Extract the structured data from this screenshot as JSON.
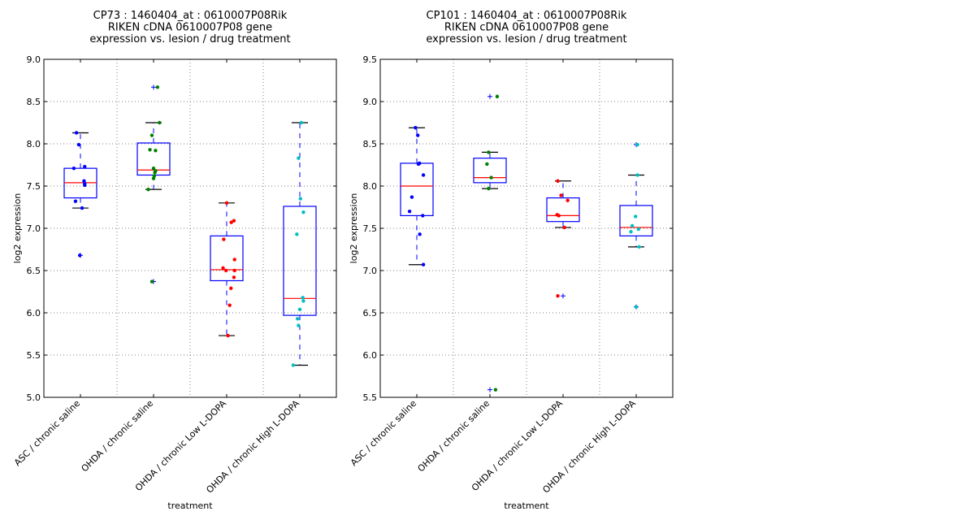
{
  "chart_data": [
    {
      "type": "box",
      "title_lines": [
        "CP73 : 1460404_at : 0610007P08Rik",
        "RIKEN cDNA 0610007P08 gene",
        "expression vs. lesion / drug treatment"
      ],
      "xlabel": "treatment",
      "ylabel": "log2 expression",
      "ylim": [
        5.0,
        9.0
      ],
      "yticks": [
        "5.0",
        "5.5",
        "6.0",
        "6.5",
        "7.0",
        "7.5",
        "8.0",
        "8.5",
        "9.0"
      ],
      "grid": true,
      "categories": [
        "ASC / chronic saline",
        "OHDA / chronic saline",
        "OHDA / chronic Low L-DOPA",
        "OHDA / chronic High L-DOPA"
      ],
      "point_colors": [
        "#0000ff",
        "#008000",
        "#ff0000",
        "#00bfbf"
      ],
      "boxes": [
        {
          "whislo": 7.24,
          "q1": 7.36,
          "med": 7.54,
          "q3": 7.71,
          "whishi": 8.13,
          "fliers": [
            6.68
          ]
        },
        {
          "whislo": 7.46,
          "q1": 7.63,
          "med": 7.69,
          "q3": 8.01,
          "whishi": 8.25,
          "fliers": [
            8.67,
            6.37
          ]
        },
        {
          "whislo": 5.73,
          "q1": 6.38,
          "med": 6.51,
          "q3": 6.91,
          "whishi": 7.3,
          "fliers": []
        },
        {
          "whislo": 5.38,
          "q1": 5.97,
          "med": 6.17,
          "q3": 7.26,
          "whishi": 8.25,
          "fliers": []
        }
      ],
      "points": [
        [
          {
            "v": 8.13,
            "j": -0.12
          },
          {
            "v": 7.99,
            "j": -0.05
          },
          {
            "v": 7.71,
            "j": -0.2
          },
          {
            "v": 7.73,
            "j": 0.13
          },
          {
            "v": 7.56,
            "j": 0.11
          },
          {
            "v": 7.53,
            "j": 0.13
          },
          {
            "v": 7.51,
            "j": 0.13
          },
          {
            "v": 7.32,
            "j": -0.15
          },
          {
            "v": 7.24,
            "j": 0.05
          },
          {
            "v": 6.68,
            "j": -0.02
          }
        ],
        [
          {
            "v": 8.67,
            "j": 0.12
          },
          {
            "v": 8.25,
            "j": 0.18
          },
          {
            "v": 8.1,
            "j": -0.05
          },
          {
            "v": 7.93,
            "j": -0.11
          },
          {
            "v": 7.92,
            "j": 0.06
          },
          {
            "v": 7.71,
            "j": 0.0
          },
          {
            "v": 7.68,
            "j": 0.06
          },
          {
            "v": 7.66,
            "j": 0.04
          },
          {
            "v": 7.62,
            "j": 0.02
          },
          {
            "v": 7.59,
            "j": 0.0
          },
          {
            "v": 7.46,
            "j": -0.16
          },
          {
            "v": 6.37,
            "j": -0.05
          }
        ],
        [
          {
            "v": 7.3,
            "j": 0.0
          },
          {
            "v": 7.09,
            "j": 0.22
          },
          {
            "v": 7.07,
            "j": 0.14
          },
          {
            "v": 6.87,
            "j": -0.09
          },
          {
            "v": 6.63,
            "j": 0.24
          },
          {
            "v": 6.53,
            "j": -0.11
          },
          {
            "v": 6.5,
            "j": -0.02
          },
          {
            "v": 6.5,
            "j": 0.24
          },
          {
            "v": 6.42,
            "j": 0.22
          },
          {
            "v": 6.29,
            "j": 0.13
          },
          {
            "v": 6.09,
            "j": 0.09
          },
          {
            "v": 5.73,
            "j": 0.04
          }
        ],
        [
          {
            "v": 8.25,
            "j": 0.05
          },
          {
            "v": 7.83,
            "j": -0.04
          },
          {
            "v": 7.35,
            "j": 0.02
          },
          {
            "v": 7.19,
            "j": 0.11
          },
          {
            "v": 6.93,
            "j": -0.09
          },
          {
            "v": 6.18,
            "j": 0.09
          },
          {
            "v": 6.14,
            "j": 0.11
          },
          {
            "v": 6.04,
            "j": 0.0
          },
          {
            "v": 5.93,
            "j": -0.07
          },
          {
            "v": 5.85,
            "j": -0.04
          },
          {
            "v": 5.38,
            "j": -0.2
          }
        ]
      ]
    },
    {
      "type": "box",
      "title_lines": [
        "CP101 : 1460404_at : 0610007P08Rik",
        "RIKEN cDNA 0610007P08 gene",
        "expression vs. lesion / drug treatment"
      ],
      "xlabel": "treatment",
      "ylabel": "log2 expression",
      "ylim": [
        5.5,
        9.5
      ],
      "yticks": [
        "5.5",
        "6.0",
        "6.5",
        "7.0",
        "7.5",
        "8.0",
        "8.5",
        "9.0",
        "9.5"
      ],
      "grid": true,
      "categories": [
        "ASC / chronic saline",
        "OHDA / chronic saline",
        "OHDA / chronic Low L-DOPA",
        "OHDA / chronic High L-DOPA"
      ],
      "point_colors": [
        "#0000ff",
        "#008000",
        "#ff0000",
        "#00bfbf"
      ],
      "boxes": [
        {
          "whislo": 7.07,
          "q1": 7.65,
          "med": 8.0,
          "q3": 8.27,
          "whishi": 8.69,
          "fliers": []
        },
        {
          "whislo": 7.97,
          "q1": 8.04,
          "med": 8.1,
          "q3": 8.33,
          "whishi": 8.4,
          "fliers": [
            9.06,
            5.59
          ]
        },
        {
          "whislo": 7.51,
          "q1": 7.58,
          "med": 7.65,
          "q3": 7.86,
          "whishi": 8.06,
          "fliers": [
            6.7
          ]
        },
        {
          "whislo": 7.28,
          "q1": 7.41,
          "med": 7.51,
          "q3": 7.77,
          "whishi": 8.13,
          "fliers": [
            8.49,
            6.57
          ]
        }
      ],
      "points": [
        [
          {
            "v": 8.69,
            "j": -0.04
          },
          {
            "v": 8.6,
            "j": 0.03
          },
          {
            "v": 8.27,
            "j": 0.08
          },
          {
            "v": 8.26,
            "j": 0.05
          },
          {
            "v": 8.13,
            "j": 0.2
          },
          {
            "v": 7.87,
            "j": -0.15
          },
          {
            "v": 7.7,
            "j": -0.22
          },
          {
            "v": 7.65,
            "j": 0.18
          },
          {
            "v": 7.43,
            "j": 0.09
          },
          {
            "v": 7.07,
            "j": 0.2
          }
        ],
        [
          {
            "v": 9.06,
            "j": 0.22
          },
          {
            "v": 8.4,
            "j": -0.04
          },
          {
            "v": 8.26,
            "j": -0.09
          },
          {
            "v": 8.1,
            "j": 0.04
          },
          {
            "v": 7.97,
            "j": -0.04
          },
          {
            "v": 5.59,
            "j": 0.17
          }
        ],
        [
          {
            "v": 8.06,
            "j": -0.16
          },
          {
            "v": 7.89,
            "j": -0.06
          },
          {
            "v": 7.83,
            "j": 0.14
          },
          {
            "v": 7.66,
            "j": -0.18
          },
          {
            "v": 7.65,
            "j": -0.13
          },
          {
            "v": 7.51,
            "j": 0.04
          },
          {
            "v": 6.7,
            "j": -0.16
          }
        ],
        [
          {
            "v": 8.49,
            "j": 0.04
          },
          {
            "v": 8.13,
            "j": 0.04
          },
          {
            "v": 7.64,
            "j": -0.02
          },
          {
            "v": 7.53,
            "j": -0.12
          },
          {
            "v": 7.49,
            "j": 0.07
          },
          {
            "v": 7.46,
            "j": -0.16
          },
          {
            "v": 7.28,
            "j": 0.09
          },
          {
            "v": 6.57,
            "j": 0.0
          }
        ]
      ]
    }
  ]
}
